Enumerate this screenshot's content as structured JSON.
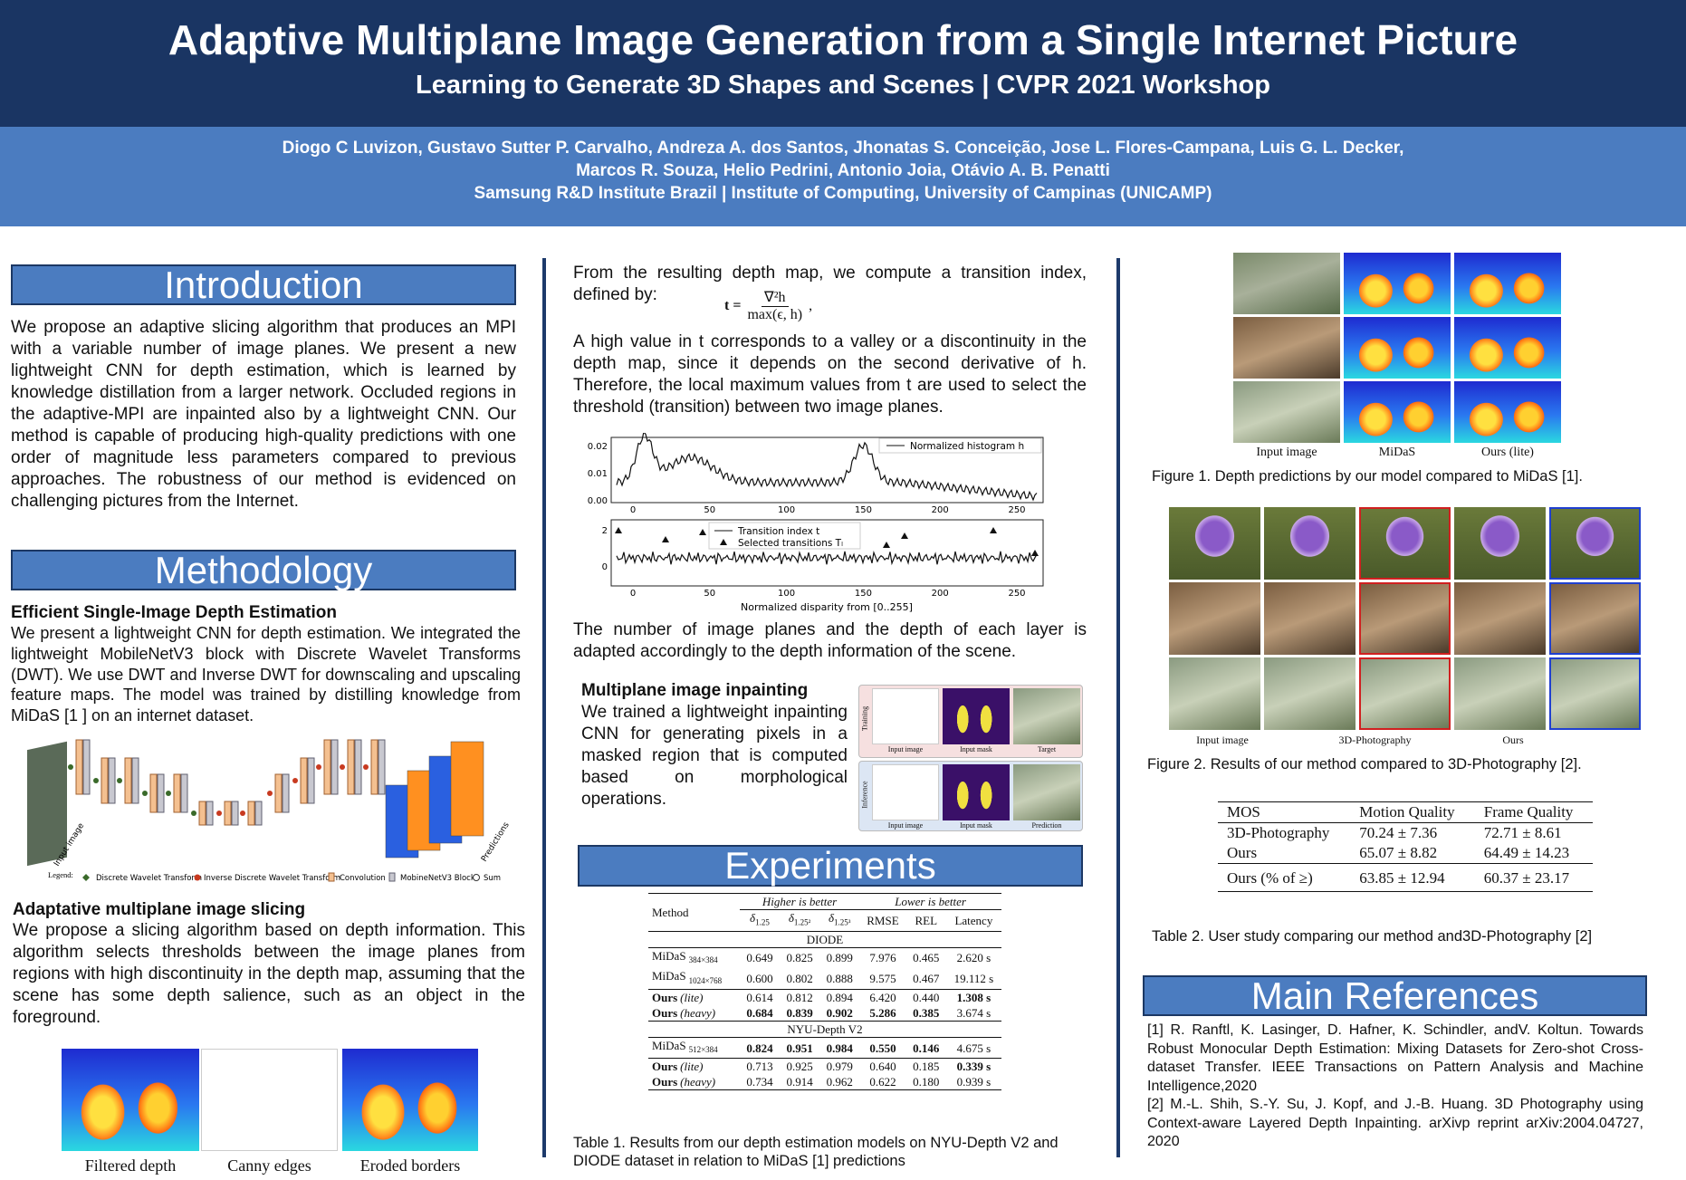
{
  "header": {
    "title": "Adaptive Multiplane Image Generation from a Single Internet Picture",
    "subtitle": "Learning to Generate 3D Shapes and Scenes | CVPR 2021 Workshop",
    "authors": [
      "Diogo C Luvizon, Gustavo Sutter P. Carvalho, Andreza A. dos Santos, Jhonatas S. Conceição, Jose L. Flores-Campana, Luis G. L. Decker,",
      "Marcos R. Souza, Helio Pedrini, Antonio Joia, Otávio A. B. Penatti",
      "Samsung R&D Institute Brazil | Institute of Computing, University of Campinas (UNICAMP)"
    ]
  },
  "introduction": {
    "heading": "Introduction",
    "text": "We propose an adaptive slicing algorithm that produces an MPI with a variable number of image planes. We present a new lightweight CNN for depth estimation, which is learned by knowledge distillation from a larger network. Occluded regions in the adaptive-MPI are inpainted also by a lightweight CNN. Our method is capable of producing high-quality predictions with one order of magnitude less parameters compared to previous approaches. The robustness of our method is evidenced on challenging pictures from the Internet."
  },
  "methodology": {
    "heading": "Methodology",
    "depth": {
      "title": "Efficient Single-Image Depth Estimation",
      "text": "We present a lightweight CNN for depth estimation. We integrated the lightweight MobileNetV3 block with Discrete Wavelet Transforms (DWT). We use DWT and Inverse DWT for downscaling and upscaling feature maps. The model was trained by distilling knowledge from MiDaS [1 ] on an internet dataset."
    },
    "architecture": {
      "input_label": "Input image",
      "output_label": "Predictions",
      "legend_title": "Legend:",
      "legend": [
        "Discrete Wavelet Transform",
        "Inverse Discrete Wavelet Transform",
        "Convolution",
        "MobineNetV3 Block",
        "Sum"
      ]
    },
    "slicing": {
      "title": "Adaptative multiplane image slicing",
      "text": "We propose a slicing algorithm based on depth information. This algorithm selects thresholds between the image planes from regions with high discontinuity in the depth map, assuming that the scene has some depth salience, such as an object in the foreground.",
      "captions": [
        "Filtered depth",
        "Canny edges",
        "Eroded borders"
      ]
    }
  },
  "transition": {
    "intro": "From the resulting depth map, we compute a transition index, defined by:",
    "formula": {
      "lhs": "t =",
      "numerator": "∇²h",
      "denominator": "max(ϵ, h)",
      "tail": ","
    },
    "explanation": "A high value in t corresponds to a valley or a discontinuity in the depth map, since it depends on the second derivative of h. Therefore, the local maximum values from t are used to select the threshold (transition) between two image planes.",
    "plot": {
      "top_yticks": [
        "0.02",
        "0.01",
        "0.00"
      ],
      "top_xticks": [
        "0",
        "50",
        "100",
        "150",
        "200",
        "250"
      ],
      "top_legend": "Normalized histogram h",
      "bottom_yticks": [
        "2",
        "0"
      ],
      "bottom_xticks": [
        "0",
        "50",
        "100",
        "150",
        "200",
        "250"
      ],
      "bottom_legend": [
        "Transition index t",
        "Selected transitions Tₗ"
      ],
      "xlabel": "Normalized disparity from [0..255]"
    },
    "conclusion": "The number of image planes and the depth of each layer is adapted accordingly to the depth information of the scene."
  },
  "inpainting": {
    "title": "Multiplane image inpainting",
    "text": "We trained a lightweight inpainting CNN for generating pixels in a masked region that is computed based on morphological operations.",
    "rows": [
      {
        "label": "Training",
        "images": [
          "Input image",
          "Input mask",
          "Target"
        ]
      },
      {
        "label": "Inference",
        "images": [
          "Input image",
          "Input mask",
          "Prediction"
        ]
      }
    ]
  },
  "experiments": {
    "heading": "Experiments",
    "table": {
      "method_header": "Method",
      "groups": [
        "Higher is better",
        "Lower is better"
      ],
      "columns": [
        {
          "base": "δ",
          "sub": "1.25"
        },
        {
          "base": "δ",
          "sub": "1.25²"
        },
        {
          "base": "δ",
          "sub": "1.25³"
        },
        {
          "base": "RMSE"
        },
        {
          "base": "REL"
        },
        {
          "base": "Latency"
        }
      ],
      "sections": [
        {
          "name": "DIODE",
          "groups": [
            [
              {
                "name": "MiDaS",
                "sub": "384×384",
                "cells": [
                  "0.649",
                  "0.825",
                  "0.899",
                  "7.976",
                  "0.465",
                  "2.620 s"
                ]
              },
              {
                "name": "MiDaS",
                "sub": "1024×768",
                "cells": [
                  "0.600",
                  "0.802",
                  "0.888",
                  "9.575",
                  "0.467",
                  "19.112 s"
                ]
              }
            ],
            [
              {
                "name": "Ours",
                "variant": "(lite)",
                "cells": [
                  "0.614",
                  "0.812",
                  "0.894",
                  "6.420",
                  "0.440",
                  "1.308 s"
                ],
                "bold": [
                  5
                ]
              },
              {
                "name": "Ours",
                "variant": "(heavy)",
                "cells": [
                  "0.684",
                  "0.839",
                  "0.902",
                  "5.286",
                  "0.385",
                  "3.674 s"
                ],
                "bold": [
                  0,
                  1,
                  2,
                  3,
                  4
                ]
              }
            ]
          ]
        },
        {
          "name": "NYU-Depth V2",
          "groups": [
            [
              {
                "name": "MiDaS",
                "sub": "512×384",
                "cells": [
                  "0.824",
                  "0.951",
                  "0.984",
                  "0.550",
                  "0.146",
                  "4.675 s"
                ],
                "bold": [
                  0,
                  1,
                  2,
                  3,
                  4
                ]
              }
            ],
            [
              {
                "name": "Ours",
                "variant": "(lite)",
                "cells": [
                  "0.713",
                  "0.925",
                  "0.979",
                  "0.640",
                  "0.185",
                  "0.339 s"
                ],
                "bold": [
                  5
                ]
              },
              {
                "name": "Ours",
                "variant": "(heavy)",
                "cells": [
                  "0.734",
                  "0.914",
                  "0.962",
                  "0.622",
                  "0.180",
                  "0.939 s"
                ]
              }
            ]
          ]
        }
      ]
    },
    "caption": "Table 1. Results from our depth estimation models on NYU-Depth V2 and DIODE dataset in relation to MiDaS [1] predictions"
  },
  "figure1": {
    "labels": [
      "Input image",
      "MiDaS",
      "Ours (lite)"
    ],
    "caption": "Figure 1. Depth predictions by our model compared to MiDaS [1]."
  },
  "figure2": {
    "labels": [
      "Input image",
      "3D-Photography",
      "Ours"
    ],
    "caption": "Figure 2. Results of our method compared to 3D-Photography [2]."
  },
  "table2": {
    "header": [
      "MOS",
      "Motion Quality",
      "Frame Quality"
    ],
    "rows": [
      [
        "3D-Photography",
        "70.24 ± 7.36",
        "72.71 ± 8.61"
      ],
      [
        "Ours",
        "65.07 ± 8.82",
        "64.49 ± 14.23"
      ]
    ],
    "summary": [
      "Ours (% of ≥)",
      "63.85 ± 12.94",
      "60.37 ± 23.17"
    ],
    "caption": "Table 2. User study comparing our method and3D-Photography [2]"
  },
  "references": {
    "heading": "Main References",
    "items": [
      "[1] R. Ranftl, K. Lasinger, D. Hafner, K. Schindler, andV. Koltun. Towards Robust Monocular Depth Estimation: Mixing Datasets for Zero-shot Cross-dataset Transfer. IEEE Transactions on Pattern Analysis and Machine Intelligence,2020",
      "[2] M.-L. Shih, S.-Y. Su, J. Kopf, and J.-B. Huang. 3D Photography using Context-aware Layered Depth Inpainting. arXivp reprint arXiv:2004.04727, 2020"
    ]
  }
}
